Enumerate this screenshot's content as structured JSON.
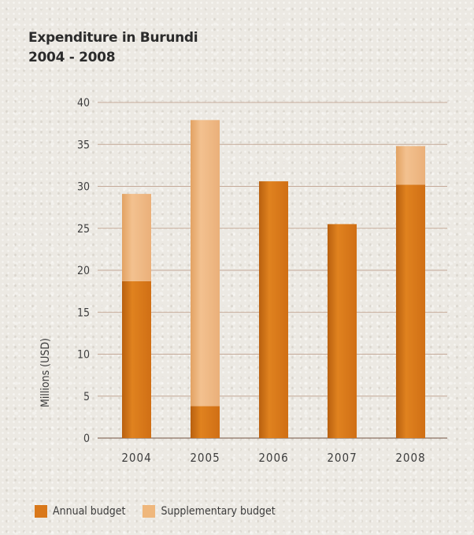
{
  "chart_data": {
    "type": "bar",
    "stacked": true,
    "title": [
      "Expenditure in Burundi",
      "2004 - 2008"
    ],
    "ylabel": "Millions (USD)",
    "xlabel": "",
    "categories": [
      "2004",
      "2005",
      "2006",
      "2007",
      "2008"
    ],
    "ylim": [
      0,
      40
    ],
    "yticks": [
      0,
      5,
      10,
      15,
      20,
      25,
      30,
      35,
      40
    ],
    "grid": true,
    "legend_position": "bottom-left",
    "series": [
      {
        "name": "Annual budget",
        "color": "#d9781a",
        "values": [
          18.7,
          3.8,
          30.6,
          25.5,
          30.2
        ]
      },
      {
        "name": "Supplementary budget",
        "color": "#efb77c",
        "values": [
          10.4,
          34.1,
          0,
          0,
          4.6
        ]
      }
    ]
  }
}
